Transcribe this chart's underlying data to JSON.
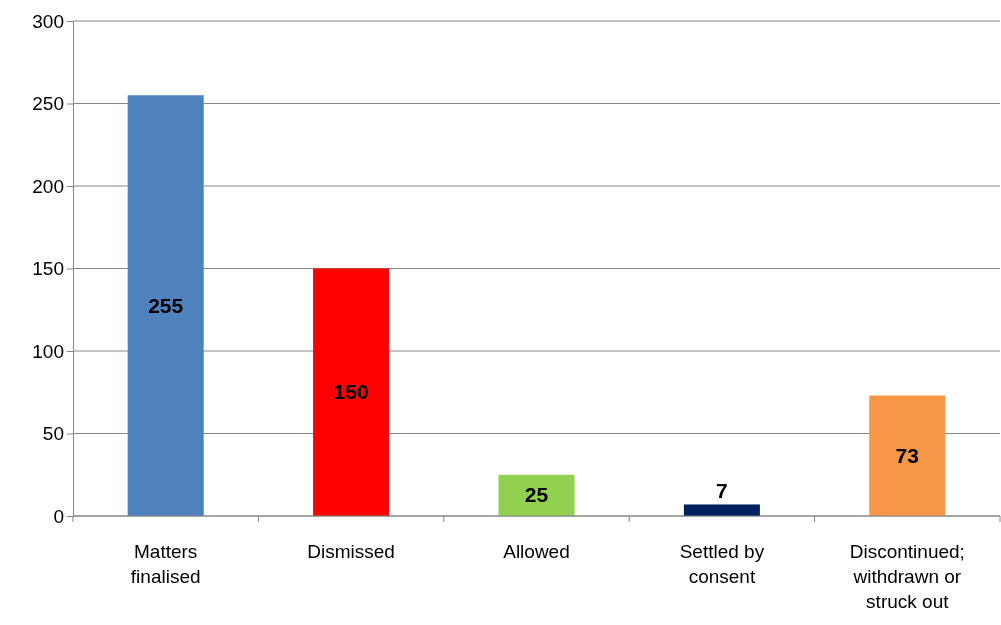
{
  "chart_data": {
    "type": "bar",
    "categories": [
      "Matters finalised",
      "Dismissed",
      "Allowed",
      "Settled by consent",
      "Discontinued; withdrawn or struck out"
    ],
    "values": [
      255,
      150,
      25,
      7,
      73
    ],
    "colors": [
      "#4f81bd",
      "#ff0000",
      "#92d050",
      "#002060",
      "#f79646"
    ],
    "ylim": [
      0,
      300
    ],
    "yticks": [
      0,
      50,
      100,
      150,
      200,
      250,
      300
    ],
    "grid": "y",
    "data_labels": true
  }
}
